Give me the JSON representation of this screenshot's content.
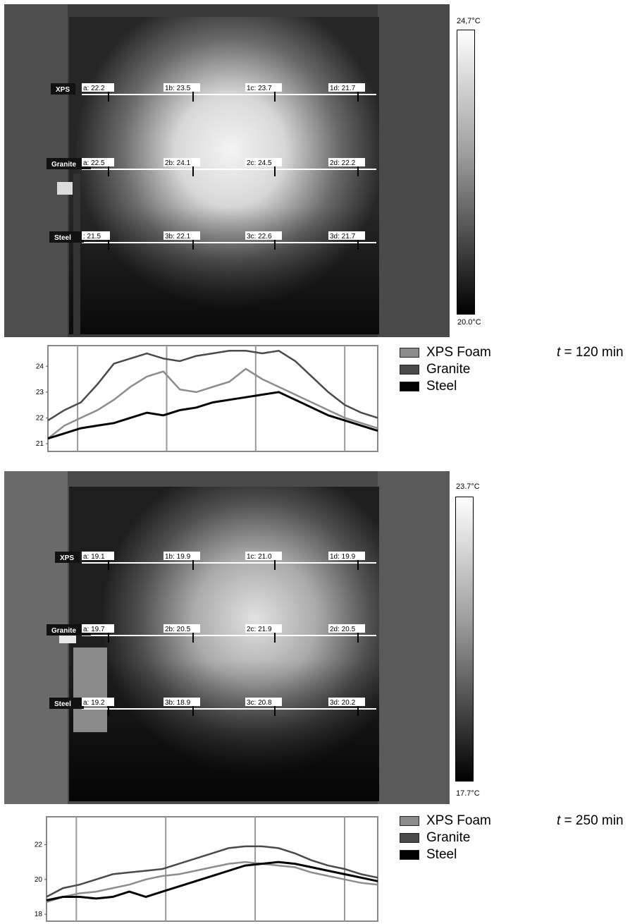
{
  "panels": [
    {
      "id": "t120",
      "scale_max": "24,7°C",
      "scale_min": "20.0°C",
      "time_var": "t",
      "time_rest": " = 120 min",
      "rows": [
        {
          "label": "XPS",
          "points": [
            "a: 22.2",
            "1b: 23.5",
            "1c: 23.7",
            "1d: 21.7"
          ]
        },
        {
          "label": "Granite",
          "points": [
            "a: 22.5",
            "2b: 24.1",
            "2c: 24.5",
            "2d: 22.2"
          ]
        },
        {
          "label": "Steel",
          "points": ": 21.5",
          "points_list": [
            ": 21.5",
            "3b: 22.1",
            "3c: 22.6",
            "3d: 21.7"
          ]
        }
      ],
      "legend": [
        "XPS Foam",
        "Granite",
        "Steel"
      ]
    },
    {
      "id": "t250",
      "scale_max": "23.7°C",
      "scale_min": "17.7°C",
      "time_var": "t",
      "time_rest": " = 250 min",
      "rows": [
        {
          "label": "XPS",
          "points": [
            "a: 19.1",
            "1b: 19.9",
            "1c: 21.0",
            "1d: 19.9"
          ]
        },
        {
          "label": "Granite",
          "points": [
            "a: 19.7",
            "2b: 20.5",
            "2c: 21.9",
            "2d: 20.5"
          ]
        },
        {
          "label": "Steel",
          "points_list": [
            "a: 19.2",
            "3b: 18.9",
            "3c: 20.8",
            "3d: 20.2"
          ]
        }
      ],
      "legend": [
        "XPS Foam",
        "Granite",
        "Steel"
      ]
    }
  ],
  "colors": {
    "xps": "#8c8c8c",
    "granite": "#4a4a4a",
    "steel": "#000000"
  },
  "chart_data": [
    {
      "type": "line",
      "x": [
        0,
        0.05,
        0.1,
        0.15,
        0.2,
        0.25,
        0.3,
        0.35,
        0.4,
        0.45,
        0.5,
        0.55,
        0.6,
        0.65,
        0.7,
        0.75,
        0.8,
        0.85,
        0.9,
        0.95,
        1.0
      ],
      "xlim": [
        0,
        1
      ],
      "ylim": [
        20.7,
        24.8
      ],
      "yticks": [
        21,
        22,
        23,
        24
      ],
      "vlines": [
        0.09,
        0.36,
        0.63,
        0.9
      ],
      "series": [
        {
          "name": "XPS Foam",
          "values": [
            21.2,
            21.7,
            22.0,
            22.3,
            22.7,
            23.2,
            23.6,
            23.8,
            23.1,
            23.0,
            23.2,
            23.4,
            23.9,
            23.5,
            23.2,
            22.9,
            22.6,
            22.3,
            22.0,
            21.8,
            21.6
          ]
        },
        {
          "name": "Granite",
          "values": [
            21.9,
            22.3,
            22.6,
            23.3,
            24.1,
            24.3,
            24.5,
            24.3,
            24.2,
            24.4,
            24.5,
            24.6,
            24.6,
            24.5,
            24.6,
            24.2,
            23.6,
            23.0,
            22.5,
            22.2,
            22.0
          ]
        },
        {
          "name": "Steel",
          "values": [
            21.2,
            21.4,
            21.6,
            21.7,
            21.8,
            22.0,
            22.2,
            22.1,
            22.3,
            22.4,
            22.6,
            22.7,
            22.8,
            22.9,
            23.0,
            22.7,
            22.4,
            22.1,
            21.9,
            21.7,
            21.5
          ]
        }
      ]
    },
    {
      "type": "line",
      "x": [
        0,
        0.05,
        0.1,
        0.15,
        0.2,
        0.25,
        0.3,
        0.35,
        0.4,
        0.45,
        0.5,
        0.55,
        0.6,
        0.65,
        0.7,
        0.75,
        0.8,
        0.85,
        0.9,
        0.95,
        1.0
      ],
      "xlim": [
        0,
        1
      ],
      "ylim": [
        17.6,
        23.6
      ],
      "yticks": [
        18,
        20,
        22
      ],
      "vlines": [
        0.09,
        0.36,
        0.63,
        0.9
      ],
      "series": [
        {
          "name": "XPS Foam",
          "values": [
            18.7,
            19.0,
            19.2,
            19.3,
            19.5,
            19.7,
            20.0,
            20.2,
            20.3,
            20.5,
            20.7,
            20.9,
            21.0,
            20.9,
            20.8,
            20.7,
            20.4,
            20.2,
            20.0,
            19.8,
            19.7
          ]
        },
        {
          "name": "Granite",
          "values": [
            19.0,
            19.5,
            19.7,
            20.0,
            20.3,
            20.4,
            20.5,
            20.6,
            20.9,
            21.2,
            21.5,
            21.8,
            21.9,
            21.9,
            21.8,
            21.5,
            21.1,
            20.8,
            20.6,
            20.3,
            20.1
          ]
        },
        {
          "name": "Steel",
          "values": [
            18.8,
            19.0,
            19.0,
            18.9,
            19.0,
            19.3,
            19.0,
            19.3,
            19.6,
            19.9,
            20.2,
            20.5,
            20.8,
            20.9,
            21.0,
            20.9,
            20.7,
            20.5,
            20.3,
            20.1,
            19.9
          ]
        }
      ]
    }
  ]
}
